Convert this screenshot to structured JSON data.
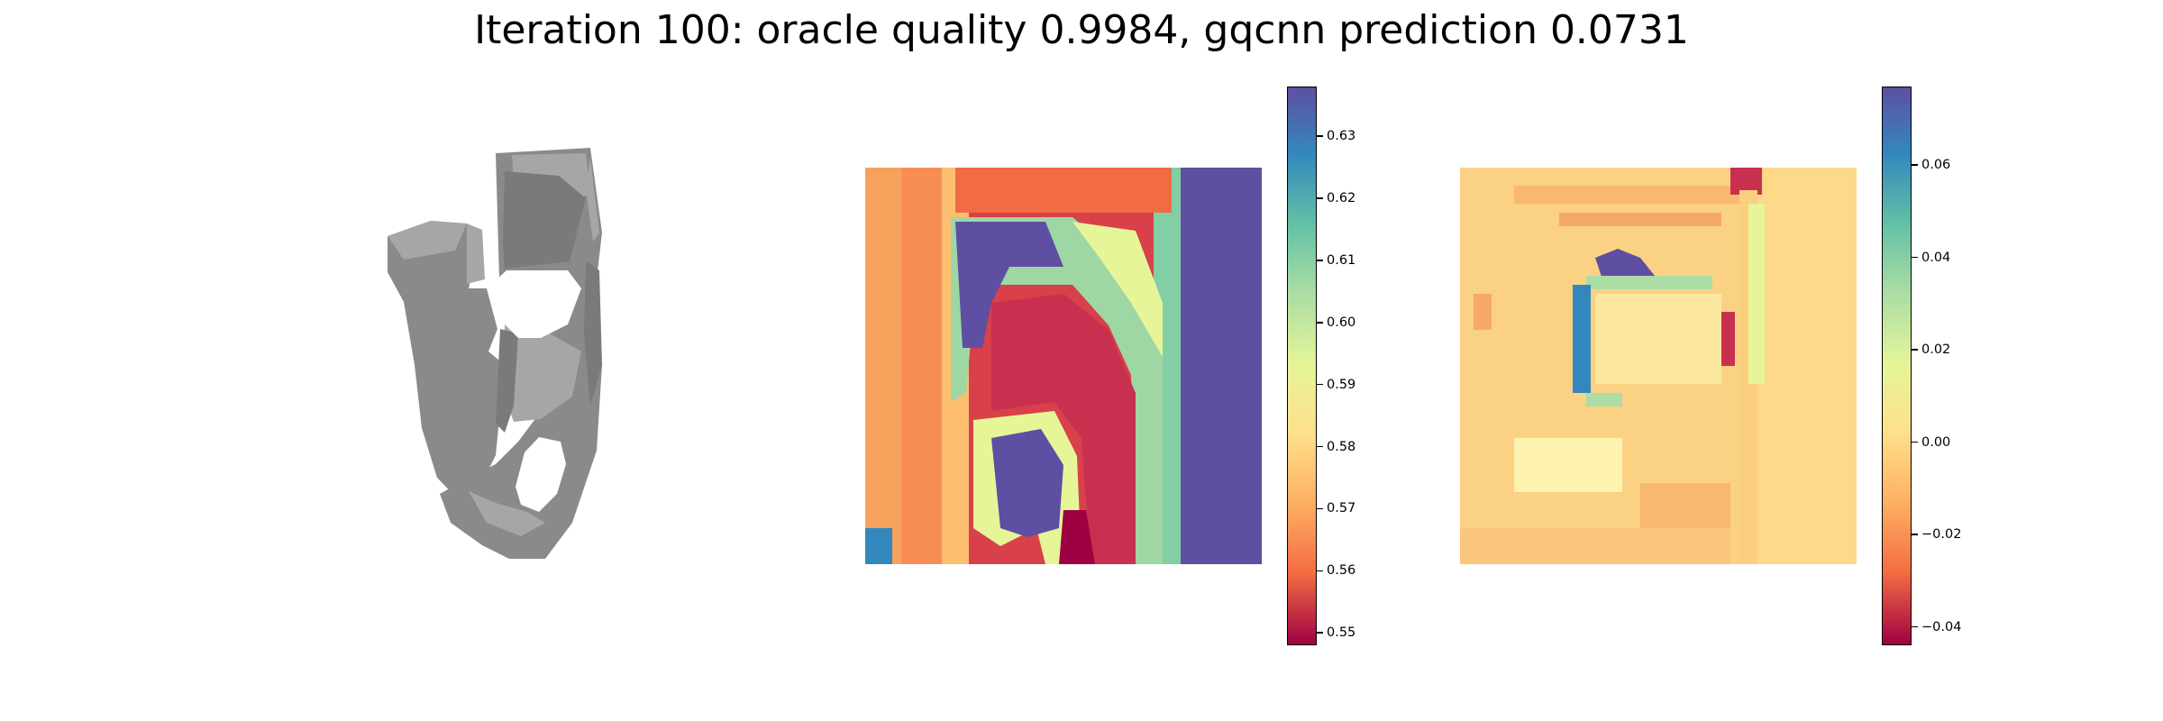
{
  "chart_data": {
    "title": "Iteration 100: oracle quality 0.9984, gqcnn prediction 0.0731",
    "panels": [
      {
        "type": "image",
        "content": "grayscale rendering of object depth image",
        "axes": "off"
      },
      {
        "type": "heatmap",
        "axes": "off",
        "colormap": "Spectral",
        "colorbar": {
          "range": [
            0.548,
            0.638
          ],
          "ticks": [
            0.55,
            0.56,
            0.57,
            0.58,
            0.59,
            0.6,
            0.61,
            0.62,
            0.63
          ],
          "tick_labels": [
            "0.55",
            "0.56",
            "0.57",
            "0.58",
            "0.59",
            "0.60",
            "0.61",
            "0.62",
            "0.63"
          ]
        }
      },
      {
        "type": "heatmap",
        "axes": "off",
        "colormap": "Spectral",
        "colorbar": {
          "range": [
            -0.044,
            0.077
          ],
          "ticks": [
            -0.04,
            -0.02,
            0.0,
            0.02,
            0.04,
            0.06
          ],
          "tick_labels": [
            "−0.04",
            "−0.02",
            "0.00",
            "0.02",
            "0.04",
            "0.06"
          ]
        }
      }
    ]
  }
}
